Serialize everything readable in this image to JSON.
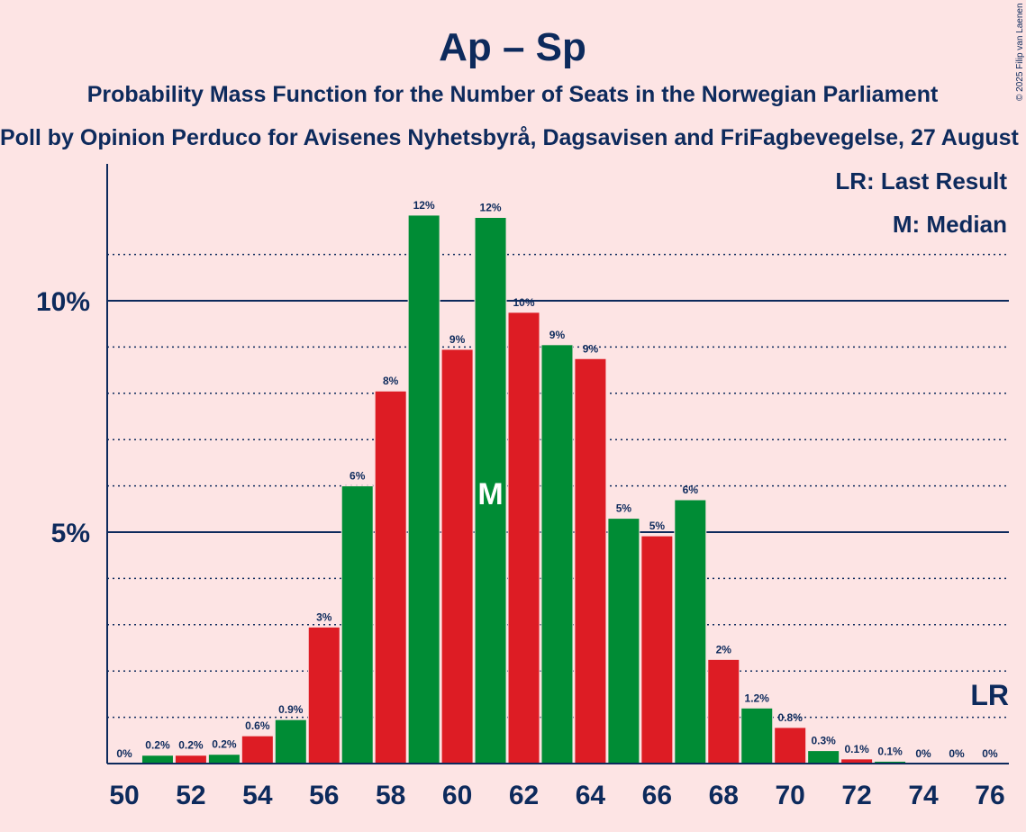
{
  "chart_data": {
    "type": "bar",
    "title": "Ap – Sp",
    "subtitle": "Probability Mass Function for the Number of Seats in the Norwegian Parliament",
    "subtitle2": "Poll by Opinion Perduco for Avisenes Nyhetsbyrå, Dagsavisen and FriFagbevegelse, 27 August",
    "copyright": "© 2025 Filip van Laenen",
    "legend": {
      "last_result": "LR: Last Result",
      "median": "M: Median"
    },
    "markers": {
      "median_label": "M",
      "median_seat": 61,
      "last_result_label": "LR",
      "last_result_seat": 76
    },
    "xlabel": "",
    "ylabel": "",
    "x_ticks": [
      "50",
      "52",
      "54",
      "56",
      "58",
      "60",
      "62",
      "64",
      "66",
      "68",
      "70",
      "72",
      "74",
      "76"
    ],
    "y_ticks": [
      {
        "value": 5,
        "label": "5%"
      },
      {
        "value": 10,
        "label": "10%"
      }
    ],
    "ylim": [
      0,
      13
    ],
    "grid": "dotted every 1%, solid at 5% and 10%",
    "colors": {
      "green": "#008C35",
      "red": "#DD1C24",
      "text": "#0D2A5C",
      "background": "#FDE4E4"
    },
    "seats": [
      50,
      51,
      52,
      53,
      54,
      55,
      56,
      57,
      58,
      59,
      60,
      61,
      62,
      63,
      64,
      65,
      66,
      67,
      68,
      69,
      70,
      71,
      72,
      73,
      74,
      75,
      76
    ],
    "values": [
      0,
      0.18,
      0.18,
      0.2,
      0.6,
      0.95,
      2.95,
      6.0,
      8.05,
      11.85,
      8.95,
      11.8,
      9.75,
      9.05,
      8.75,
      5.3,
      4.92,
      5.7,
      2.25,
      1.2,
      0.78,
      0.28,
      0.1,
      0.05,
      0,
      0,
      0
    ],
    "data_labels": [
      "0%",
      "0.2%",
      "0.2%",
      "0.2%",
      "0.6%",
      "0.9%",
      "3%",
      "6%",
      "8%",
      "12%",
      "9%",
      "12%",
      "10%",
      "9%",
      "9%",
      "5%",
      "5%",
      "6%",
      "2%",
      "1.2%",
      "0.8%",
      "0.3%",
      "0.1%",
      "0.1%",
      "0%",
      "0%",
      "0%"
    ],
    "bar_colors": [
      "red",
      "green",
      "red",
      "green",
      "red",
      "green",
      "red",
      "green",
      "red",
      "green",
      "red",
      "green",
      "red",
      "green",
      "red",
      "green",
      "red",
      "green",
      "red",
      "green",
      "red",
      "green",
      "red",
      "green",
      "red",
      "green",
      "red"
    ]
  }
}
